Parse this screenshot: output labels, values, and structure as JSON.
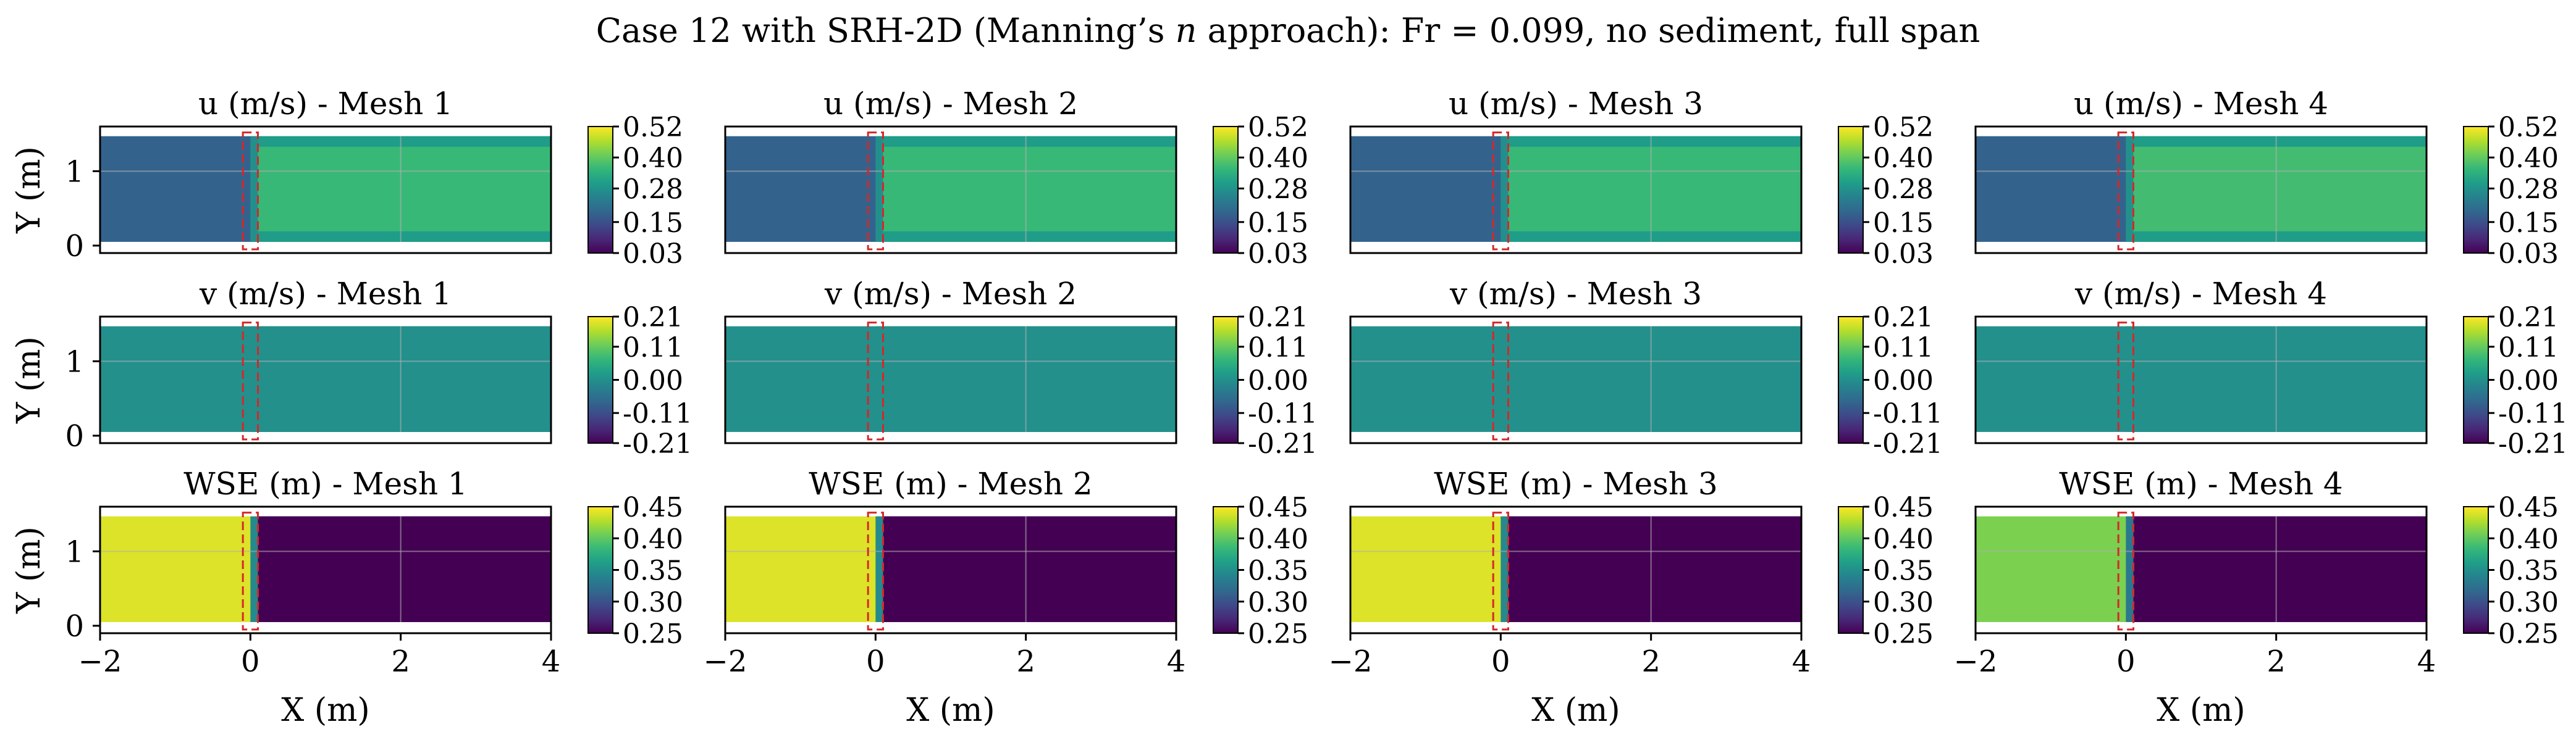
{
  "chart_data": {
    "type": "heatmap",
    "title": "Case 12 with SRH-2D (Manning’s n approach): Fr = 0.099, no sediment, full span",
    "title_parts": {
      "before": "Case 12 with SRH-2D (Manning’s ",
      "italic": "n",
      "after": " approach): Fr = 0.099, no sediment, full span"
    },
    "xlabel": "X (m)",
    "ylabel": "Y (m)",
    "xlim": [
      -2,
      4
    ],
    "ylim": [
      -0.1,
      1.6
    ],
    "xticks": [
      "−2",
      "0",
      "2",
      "4"
    ],
    "yticks": [
      "0",
      "1"
    ],
    "domain": {
      "x": [
        -2,
        4
      ],
      "y": [
        0.05,
        1.47
      ]
    },
    "structure_box": {
      "x": [
        -0.1,
        0.1
      ],
      "y": [
        -0.05,
        1.52
      ],
      "color": "#d62728",
      "style": "dashed"
    },
    "colormap": "viridis",
    "grid": "faint gray lines at x = 2 and y = 1",
    "rows": [
      {
        "variable": "u (m/s)",
        "colorbar": {
          "min": 0.03,
          "max": 0.52,
          "ticks": [
            "0.03",
            "0.15",
            "0.28",
            "0.40",
            "0.52"
          ]
        },
        "panels": [
          {
            "title": "u (m/s) - Mesh 1",
            "upstream": 0.185,
            "downstream": 0.36,
            "edge": 0.3
          },
          {
            "title": "u (m/s) - Mesh 2",
            "upstream": 0.185,
            "downstream": 0.36,
            "edge": 0.3
          },
          {
            "title": "u (m/s) - Mesh 3",
            "upstream": 0.185,
            "downstream": 0.36,
            "edge": 0.3
          },
          {
            "title": "u (m/s) - Mesh 4",
            "upstream": 0.185,
            "downstream": 0.37,
            "edge": 0.3
          }
        ]
      },
      {
        "variable": "v (m/s)",
        "colorbar": {
          "min": -0.21,
          "max": 0.21,
          "ticks": [
            "0.21",
            "0.11",
            "0.00",
            "-0.11",
            "-0.21"
          ]
        },
        "panels": [
          {
            "title": "v (m/s) - Mesh 1",
            "upstream": 0.0,
            "downstream": 0.0,
            "edge": 0.0
          },
          {
            "title": "v (m/s) - Mesh 2",
            "upstream": 0.0,
            "downstream": 0.0,
            "edge": 0.0
          },
          {
            "title": "v (m/s) - Mesh 3",
            "upstream": 0.0,
            "downstream": 0.0,
            "edge": 0.0
          },
          {
            "title": "v (m/s) - Mesh 4",
            "upstream": 0.0,
            "downstream": 0.0,
            "edge": 0.0
          }
        ]
      },
      {
        "variable": "WSE (m)",
        "colorbar": {
          "min": 0.25,
          "max": 0.45,
          "ticks": [
            "0.45",
            "0.40",
            "0.35",
            "0.30",
            "0.25"
          ]
        },
        "panels": [
          {
            "title": "WSE (m) - Mesh 1",
            "upstream": 0.44,
            "downstream": 0.25,
            "edge": 0.25
          },
          {
            "title": "WSE (m) - Mesh 2",
            "upstream": 0.44,
            "downstream": 0.25,
            "edge": 0.25
          },
          {
            "title": "WSE (m) - Mesh 3",
            "upstream": 0.44,
            "downstream": 0.25,
            "edge": 0.25
          },
          {
            "title": "WSE (m) - Mesh 4",
            "upstream": 0.41,
            "downstream": 0.25,
            "edge": 0.25
          }
        ]
      }
    ]
  }
}
